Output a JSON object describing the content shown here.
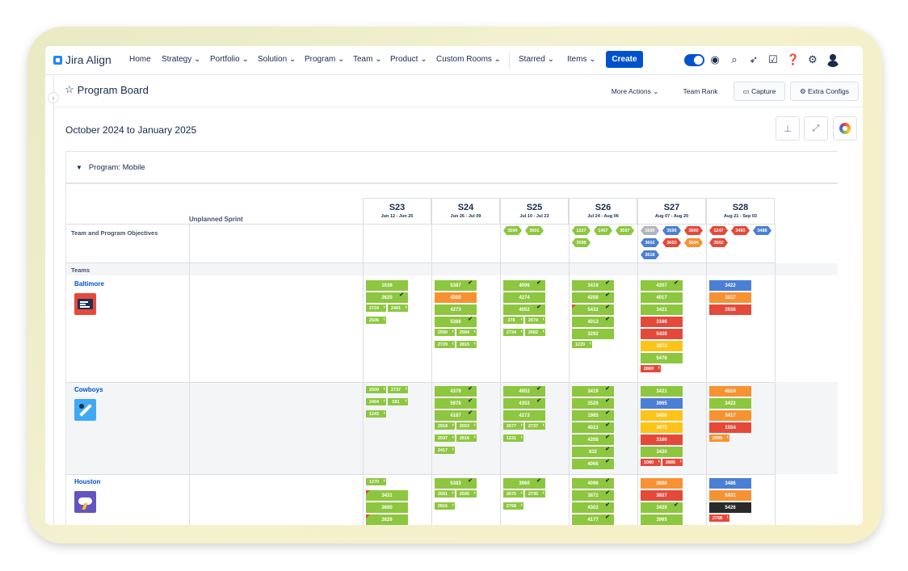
{
  "app": {
    "name": "Jira Align"
  },
  "nav": {
    "items": [
      "Home",
      "Strategy",
      "Portfolio",
      "Solution",
      "Program",
      "Team",
      "Product",
      "Custom Rooms",
      "Starred",
      "Items"
    ],
    "create": "Create"
  },
  "page": {
    "title": "Program Board",
    "more_actions": "More Actions",
    "team_rank": "Team Rank",
    "capture": "Capture",
    "extra_configs": "Extra Configs",
    "date_range": "October 2024 to January 2025",
    "program": "Program: Mobile",
    "unplanned": "Unplanned Sprint",
    "objectives_label": "Team and Program Objectives",
    "teams_label": "Teams"
  },
  "sprints": [
    {
      "name": "S23",
      "dates": "Jun 12 - Jun 25"
    },
    {
      "name": "S24",
      "dates": "Jun 26 - Jul 09"
    },
    {
      "name": "S25",
      "dates": "Jul 10 - Jul 23"
    },
    {
      "name": "S26",
      "dates": "Jul 24 - Aug 06"
    },
    {
      "name": "S27",
      "dates": "Aug 07 - Aug 20"
    },
    {
      "name": "S28",
      "dates": "Aug 21 - Sep 03"
    }
  ],
  "objectives": [
    {
      "sprint": 2,
      "items": [
        {
          "id": "3594",
          "color": "green"
        },
        {
          "id": "3601",
          "color": "green"
        }
      ]
    },
    {
      "sprint": 3,
      "items": [
        {
          "id": "1327",
          "color": "green"
        },
        {
          "id": "1457",
          "color": "green"
        },
        {
          "id": "3597",
          "color": "green"
        },
        {
          "id": "3598",
          "color": "green"
        }
      ]
    },
    {
      "sprint": 4,
      "items": [
        {
          "id": "3595",
          "color": "grey"
        },
        {
          "id": "3599",
          "color": "blue"
        },
        {
          "id": "3600",
          "color": "red"
        },
        {
          "id": "3602",
          "color": "blue"
        },
        {
          "id": "3603",
          "color": "red"
        },
        {
          "id": "3604",
          "color": "orange"
        },
        {
          "id": "3618",
          "color": "blue"
        }
      ]
    },
    {
      "sprint": 5,
      "items": [
        {
          "id": "1247",
          "color": "red"
        },
        {
          "id": "3493",
          "color": "red"
        },
        {
          "id": "3488",
          "color": "blue"
        },
        {
          "id": "3502",
          "color": "red"
        }
      ]
    }
  ],
  "teams": [
    {
      "name": "Baltimore",
      "columns": [
        {
          "cards": [
            {
              "id": "1638",
              "c": "green"
            },
            {
              "id": "2620",
              "c": "green",
              "chk": true
            }
          ],
          "small": [
            [
              "2724",
              "2481"
            ],
            [
              "2506"
            ]
          ]
        },
        {
          "cards": [
            {
              "id": "5387",
              "c": "green",
              "chk": true
            },
            {
              "id": "4209",
              "c": "orange"
            },
            {
              "id": "4273",
              "c": "green"
            },
            {
              "id": "5386",
              "c": "green",
              "chk": true
            }
          ],
          "small": [
            [
              "2550",
              "2584"
            ],
            [
              "2729",
              "2815"
            ]
          ]
        },
        {
          "cards": [
            {
              "id": "4096",
              "c": "green",
              "chk": true
            },
            {
              "id": "4274",
              "c": "green"
            },
            {
              "id": "4052",
              "c": "green",
              "chk": true
            }
          ],
          "small": [
            [
              "378",
              "2674"
            ],
            [
              "2734",
              "2682"
            ]
          ]
        },
        {
          "cards": [
            {
              "id": "3419",
              "c": "green",
              "chk": true
            },
            {
              "id": "4208",
              "c": "green",
              "chk": true
            },
            {
              "id": "5432",
              "c": "green",
              "chk": true,
              "flag": true
            },
            {
              "id": "4013",
              "c": "green",
              "chk": true
            },
            {
              "id": "3292",
              "c": "green"
            }
          ],
          "small": [
            [
              "1229"
            ]
          ]
        },
        {
          "cards": [
            {
              "id": "4207",
              "c": "green",
              "chk": true
            },
            {
              "id": "4017",
              "c": "green"
            },
            {
              "id": "3421",
              "c": "green"
            },
            {
              "id": "3166",
              "c": "red"
            },
            {
              "id": "5426",
              "c": "red"
            },
            {
              "id": "3973",
              "c": "yellow"
            },
            {
              "id": "5478",
              "c": "green"
            }
          ],
          "small": [
            [
              "2869"
            ]
          ],
          "smallRed": true
        },
        {
          "cards": [
            {
              "id": "3422",
              "c": "blue"
            },
            {
              "id": "3317",
              "c": "orange"
            },
            {
              "id": "2938",
              "c": "red"
            }
          ],
          "small": []
        }
      ]
    },
    {
      "name": "Cowboys",
      "columns": [
        {
          "cards": [],
          "small": [
            [
              "2509",
              "2737"
            ],
            [
              "2464",
              "581"
            ],
            [
              "1243"
            ]
          ]
        },
        {
          "cards": [
            {
              "id": "4379",
              "c": "green",
              "chk": true
            },
            {
              "id": "5978",
              "c": "green",
              "chk": true
            },
            {
              "id": "4187",
              "c": "green",
              "chk": true
            }
          ],
          "small": [
            [
              "2918",
              "2553"
            ],
            [
              "2597",
              "2816"
            ],
            [
              "2417"
            ]
          ]
        },
        {
          "cards": [
            {
              "id": "4053",
              "c": "green",
              "chk": true
            },
            {
              "id": "4353",
              "c": "green",
              "chk": true
            },
            {
              "id": "4273",
              "c": "green"
            }
          ],
          "small": [
            [
              "2677",
              "2737"
            ],
            [
              "1231"
            ]
          ]
        },
        {
          "cards": [
            {
              "id": "3419",
              "c": "green",
              "chk": true
            },
            {
              "id": "3526",
              "c": "green",
              "chk": true
            },
            {
              "id": "1985",
              "c": "green",
              "chk": true
            },
            {
              "id": "4023",
              "c": "green",
              "chk": true
            },
            {
              "id": "4208",
              "c": "green",
              "chk": true
            },
            {
              "id": "832",
              "c": "green",
              "chk": true
            },
            {
              "id": "4066",
              "c": "green",
              "chk": true
            }
          ],
          "small": []
        },
        {
          "cards": [
            {
              "id": "3421",
              "c": "green"
            },
            {
              "id": "3965",
              "c": "blue"
            },
            {
              "id": "5426",
              "c": "yellow"
            },
            {
              "id": "3973",
              "c": "yellow"
            },
            {
              "id": "3166",
              "c": "red"
            },
            {
              "id": "3420",
              "c": "green"
            }
          ],
          "small": [
            [
              "1080",
              "2885"
            ]
          ],
          "smallRed": true
        },
        {
          "cards": [
            {
              "id": "4024",
              "c": "orange"
            },
            {
              "id": "3422",
              "c": "green"
            },
            {
              "id": "3417",
              "c": "orange"
            },
            {
              "id": "1554",
              "c": "red"
            }
          ],
          "small": [
            [
              "2999"
            ]
          ],
          "smallOrange": true
        }
      ]
    },
    {
      "name": "Houston",
      "columns": [
        {
          "cards": [],
          "small": [
            [
              "1270"
            ]
          ],
          "cards2": [
            {
              "id": "3431",
              "c": "green",
              "flag": true
            },
            {
              "id": "3690",
              "c": "green"
            },
            {
              "id": "2626",
              "c": "green",
              "flag": true
            }
          ]
        },
        {
          "cards": [
            {
              "id": "5383",
              "c": "green",
              "chk": true
            }
          ],
          "small": [
            [
              "2551",
              "2595"
            ],
            [
              "2816"
            ]
          ]
        },
        {
          "cards": [
            {
              "id": "3960",
              "c": "green",
              "chk": true
            }
          ],
          "small": [
            [
              "2675",
              "2735"
            ],
            [
              "2768"
            ]
          ]
        },
        {
          "cards": [
            {
              "id": "4096",
              "c": "green",
              "chk": true
            },
            {
              "id": "3872",
              "c": "green",
              "chk": true
            },
            {
              "id": "4302",
              "c": "green",
              "chk": true
            },
            {
              "id": "4177",
              "c": "green",
              "chk": true
            }
          ],
          "small": []
        },
        {
          "cards": [
            {
              "id": "3928",
              "c": "orange"
            },
            {
              "id": "3927",
              "c": "red"
            },
            {
              "id": "3429",
              "c": "green",
              "chk": true
            },
            {
              "id": "3965",
              "c": "green"
            }
          ],
          "small": []
        },
        {
          "cards": [
            {
              "id": "3486",
              "c": "blue"
            },
            {
              "id": "5431",
              "c": "orange"
            },
            {
              "id": "5426",
              "c": "black"
            }
          ],
          "small": [
            [
              "2758"
            ]
          ],
          "smallRed": true
        }
      ]
    }
  ]
}
